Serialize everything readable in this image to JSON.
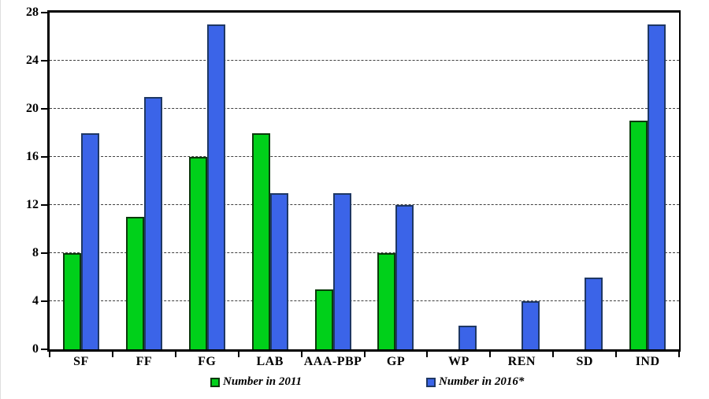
{
  "figure": {
    "background": "#ffffff",
    "frame_color": "#000000",
    "grid_color": "#3f3f3f"
  },
  "chart_data": {
    "type": "bar",
    "title": "",
    "xlabel": "",
    "ylabel": "",
    "categories": [
      "SF",
      "FF",
      "FG",
      "LAB",
      "AAA-PBP",
      "GP",
      "WP",
      "REN",
      "SD",
      "IND"
    ],
    "series": [
      {
        "name": "Number in 2011",
        "fill": "#00d01a",
        "border": "#0b3a0b",
        "values": [
          8,
          11,
          16,
          18,
          5,
          8,
          0,
          0,
          0,
          19
        ]
      },
      {
        "name": "Number in 2016*",
        "fill": "#3b64e8",
        "border": "#1f3864",
        "values": [
          18,
          21,
          27,
          13,
          13,
          12,
          2,
          4,
          6,
          27
        ]
      }
    ],
    "ylim": [
      0,
      28
    ],
    "yticks": [
      0,
      4,
      8,
      12,
      16,
      20,
      24,
      28
    ],
    "grid": "horizontal-dashed",
    "legend_position": "bottom"
  }
}
